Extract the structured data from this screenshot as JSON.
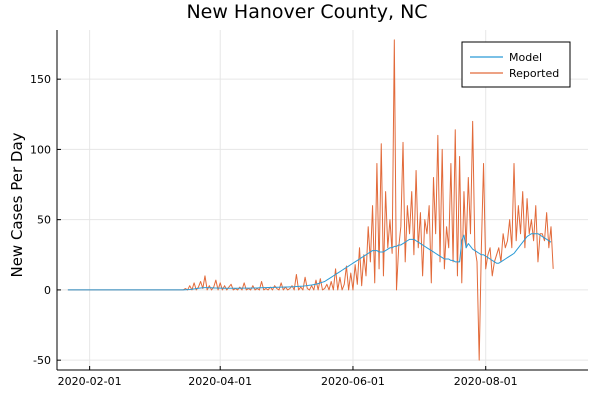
{
  "chart_data": {
    "type": "line",
    "title": "New Hanover County, NC",
    "xlabel": "",
    "ylabel": "New Cases Per Day",
    "x_start": "2020-01-22",
    "xlim": [
      "2020-01-17",
      "2020-09-17"
    ],
    "ylim": [
      -57,
      185
    ],
    "x_ticks": [
      "2020-02-01",
      "2020-04-01",
      "2020-06-01",
      "2020-08-01"
    ],
    "y_ticks": [
      -50,
      0,
      50,
      100,
      150
    ],
    "grid": true,
    "legend_position": "top-right",
    "series": [
      {
        "name": "Model",
        "color": "#2b9bd6",
        "values": [
          0,
          0,
          0,
          0,
          0,
          0,
          0,
          0,
          0,
          0,
          0,
          0,
          0,
          0,
          0,
          0,
          0,
          0,
          0,
          0,
          0,
          0,
          0,
          0,
          0,
          0,
          0,
          0,
          0,
          0,
          0,
          0,
          0,
          0,
          0,
          0,
          0,
          0,
          0,
          0,
          0,
          0,
          0,
          0,
          0,
          0,
          0,
          0,
          0,
          0,
          0,
          0,
          0,
          0,
          0.1,
          0.2,
          0.3,
          0.5,
          0.7,
          1.0,
          1.2,
          1.4,
          1.5,
          1.6,
          1.6,
          1.5,
          1.5,
          1.4,
          1.4,
          1.3,
          1.3,
          1.3,
          1.2,
          1.2,
          1.2,
          1.2,
          1.2,
          1.2,
          1.2,
          1.2,
          1.3,
          1.3,
          1.3,
          1.3,
          1.3,
          1.4,
          1.4,
          1.4,
          1.5,
          1.5,
          1.6,
          1.6,
          1.7,
          1.7,
          1.8,
          1.8,
          1.9,
          1.9,
          2.0,
          2.0,
          2.1,
          2.1,
          2.2,
          2.2,
          2.3,
          2.4,
          2.5,
          2.6,
          2.7,
          2.9,
          3.1,
          3.3,
          3.5,
          3.8,
          4.1,
          4.5,
          5.0,
          5.5,
          6,
          7,
          8,
          9,
          10,
          11,
          12,
          13,
          14,
          15,
          16,
          17,
          18,
          19,
          20,
          21,
          22,
          23,
          24,
          25,
          26,
          27,
          28,
          28,
          28,
          27,
          27,
          27,
          28,
          29,
          30,
          30,
          31,
          31,
          32,
          32,
          33,
          34,
          35,
          36,
          36,
          36,
          35,
          34,
          33,
          32,
          31,
          30,
          29,
          28,
          27,
          26,
          25,
          24,
          23,
          22,
          22,
          22,
          21,
          21,
          20,
          20,
          20,
          35,
          39,
          30,
          33,
          31,
          29,
          28,
          27,
          26,
          25,
          25,
          24,
          23,
          22,
          21,
          20,
          19,
          19,
          20,
          21,
          22,
          23,
          24,
          25,
          26,
          28,
          30,
          32,
          34,
          36,
          38,
          39,
          40,
          40,
          40,
          40,
          39,
          38,
          37,
          36,
          35,
          34
        ]
      },
      {
        "name": "Reported",
        "color": "#e26a3a",
        "values": [
          0,
          0,
          0,
          0,
          0,
          0,
          0,
          0,
          0,
          0,
          0,
          0,
          0,
          0,
          0,
          0,
          0,
          0,
          0,
          0,
          0,
          0,
          0,
          0,
          0,
          0,
          0,
          0,
          0,
          0,
          0,
          0,
          0,
          0,
          0,
          0,
          0,
          0,
          0,
          0,
          0,
          0,
          0,
          0,
          0,
          0,
          0,
          0,
          0,
          0,
          0,
          0,
          0,
          0,
          1,
          0,
          3,
          0,
          5,
          0,
          2,
          6,
          1,
          10,
          0,
          3,
          0,
          2,
          7,
          0,
          5,
          0,
          3,
          0,
          2,
          4,
          0,
          1,
          0,
          2,
          0,
          5,
          0,
          1,
          0,
          3,
          0,
          1,
          0,
          6,
          0,
          1,
          0,
          2,
          0,
          3,
          1,
          0,
          5,
          0,
          2,
          0,
          1,
          3,
          0,
          11,
          0,
          2,
          0,
          9,
          1,
          0,
          3,
          0,
          7,
          0,
          8,
          0,
          1,
          4,
          0,
          6,
          0,
          15,
          0,
          9,
          0,
          4,
          17,
          0,
          12,
          0,
          18,
          4,
          30,
          3,
          25,
          10,
          45,
          20,
          60,
          5,
          90,
          15,
          104,
          10,
          70,
          30,
          50,
          26,
          178,
          0,
          30,
          45,
          105,
          20,
          60,
          40,
          70,
          25,
          85,
          30,
          55,
          10,
          50,
          40,
          60,
          5,
          80,
          40,
          110,
          20,
          100,
          15,
          45,
          30,
          90,
          20,
          114,
          10,
          95,
          5,
          70,
          30,
          80,
          40,
          120,
          30,
          20,
          -50,
          30,
          90,
          15,
          25,
          30,
          10,
          20,
          25,
          30,
          20,
          40,
          30,
          35,
          50,
          30,
          90,
          35,
          60,
          40,
          70,
          30,
          65,
          40,
          50,
          35,
          60,
          20,
          40,
          40,
          35,
          55,
          30,
          45,
          15
        ]
      }
    ]
  }
}
